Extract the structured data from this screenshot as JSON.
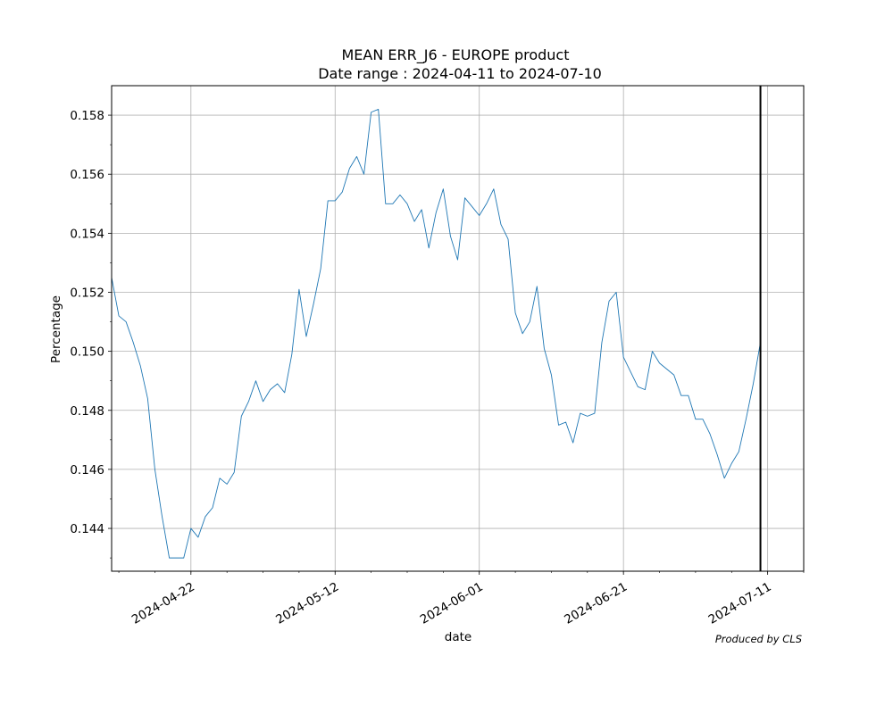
{
  "chart_data": {
    "type": "line",
    "title": "MEAN ERR_J6 - EUROPE product",
    "subtitle": "Date range : 2024-04-11 to 2024-07-10",
    "xlabel": "date",
    "ylabel": "Percentage",
    "credit": "Produced by CLS",
    "xlim": [
      "2024-04-11",
      "2024-07-16"
    ],
    "ylim": [
      0.14255,
      0.159
    ],
    "x_ticks": [
      "2024-04-22",
      "2024-05-12",
      "2024-06-01",
      "2024-06-21",
      "2024-07-11"
    ],
    "y_ticks": [
      "0.144",
      "0.146",
      "0.148",
      "0.150",
      "0.152",
      "0.154",
      "0.156",
      "0.158"
    ],
    "grid": true,
    "vline_date": "2024-07-10",
    "line_color": "#1f77b4",
    "vline_color": "#000000",
    "series": [
      {
        "x": [
          "2024-04-11",
          "2024-04-12",
          "2024-04-13",
          "2024-04-14",
          "2024-04-15",
          "2024-04-16",
          "2024-04-17",
          "2024-04-18",
          "2024-04-19",
          "2024-04-20",
          "2024-04-21",
          "2024-04-22",
          "2024-04-23",
          "2024-04-24",
          "2024-04-25",
          "2024-04-26",
          "2024-04-27",
          "2024-04-28",
          "2024-04-29",
          "2024-04-30",
          "2024-05-01",
          "2024-05-02",
          "2024-05-03",
          "2024-05-04",
          "2024-05-05",
          "2024-05-06",
          "2024-05-07",
          "2024-05-08",
          "2024-05-09",
          "2024-05-10",
          "2024-05-11",
          "2024-05-12",
          "2024-05-13",
          "2024-05-14",
          "2024-05-15",
          "2024-05-16",
          "2024-05-17",
          "2024-05-18",
          "2024-05-19",
          "2024-05-20",
          "2024-05-21",
          "2024-05-22",
          "2024-05-23",
          "2024-05-24",
          "2024-05-25",
          "2024-05-26",
          "2024-05-27",
          "2024-05-28",
          "2024-05-29",
          "2024-05-30",
          "2024-05-31",
          "2024-06-01",
          "2024-06-02",
          "2024-06-03",
          "2024-06-04",
          "2024-06-05",
          "2024-06-06",
          "2024-06-07",
          "2024-06-08",
          "2024-06-09",
          "2024-06-10",
          "2024-06-11",
          "2024-06-12",
          "2024-06-13",
          "2024-06-14",
          "2024-06-15",
          "2024-06-16",
          "2024-06-17",
          "2024-06-18",
          "2024-06-19",
          "2024-06-20",
          "2024-06-21",
          "2024-06-22",
          "2024-06-23",
          "2024-06-24",
          "2024-06-25",
          "2024-06-26",
          "2024-06-27",
          "2024-06-28",
          "2024-06-29",
          "2024-06-30",
          "2024-07-01",
          "2024-07-02",
          "2024-07-03",
          "2024-07-04",
          "2024-07-05",
          "2024-07-06",
          "2024-07-07",
          "2024-07-08",
          "2024-07-09",
          "2024-07-10"
        ],
        "y": [
          0.1525,
          0.1512,
          0.151,
          0.1503,
          0.1495,
          0.1484,
          0.146,
          0.1444,
          0.143,
          0.143,
          0.143,
          0.144,
          0.1437,
          0.1444,
          0.1447,
          0.1457,
          0.1455,
          0.1459,
          0.1478,
          0.1483,
          0.149,
          0.1483,
          0.1487,
          0.1489,
          0.1486,
          0.1499,
          0.1521,
          0.1505,
          0.1516,
          0.1528,
          0.1551,
          0.1551,
          0.1554,
          0.1562,
          0.1566,
          0.156,
          0.1581,
          0.1582,
          0.155,
          0.155,
          0.1553,
          0.155,
          0.1544,
          0.1548,
          0.1535,
          0.1547,
          0.1555,
          0.1539,
          0.1531,
          0.1552,
          0.1549,
          0.1546,
          0.155,
          0.1555,
          0.1543,
          0.1538,
          0.1513,
          0.1506,
          0.151,
          0.1522,
          0.1501,
          0.1492,
          0.1475,
          0.1476,
          0.1469,
          0.1479,
          0.1478,
          0.1479,
          0.1503,
          0.1517,
          0.152,
          0.1498,
          0.1493,
          0.1488,
          0.1487,
          0.15,
          0.1496,
          0.1494,
          0.1492,
          0.1485,
          0.1485,
          0.1477,
          0.1477,
          0.1472,
          0.1465,
          0.1457,
          0.1462,
          0.1466,
          0.1477,
          0.1489,
          0.1503
        ]
      }
    ]
  }
}
